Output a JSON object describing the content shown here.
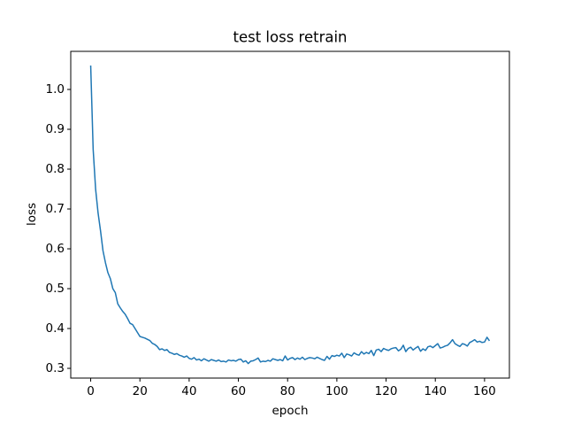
{
  "chart_data": {
    "type": "line",
    "title": "test loss retrain",
    "xlabel": "epoch",
    "ylabel": "loss",
    "x": [
      0,
      1,
      2,
      3,
      4,
      5,
      6,
      7,
      8,
      9,
      10,
      11,
      12,
      13,
      14,
      15,
      16,
      17,
      18,
      19,
      20,
      21,
      22,
      23,
      24,
      25,
      26,
      27,
      28,
      29,
      30,
      31,
      32,
      33,
      34,
      35,
      36,
      37,
      38,
      39,
      40,
      41,
      42,
      43,
      44,
      45,
      46,
      47,
      48,
      49,
      50,
      51,
      52,
      53,
      54,
      55,
      56,
      57,
      58,
      59,
      60,
      61,
      62,
      63,
      64,
      65,
      66,
      67,
      68,
      69,
      70,
      71,
      72,
      73,
      74,
      75,
      76,
      77,
      78,
      79,
      80,
      81,
      82,
      83,
      84,
      85,
      86,
      87,
      88,
      89,
      90,
      91,
      92,
      93,
      94,
      95,
      96,
      97,
      98,
      99,
      100,
      101,
      102,
      103,
      104,
      105,
      106,
      107,
      108,
      109,
      110,
      111,
      112,
      113,
      114,
      115,
      116,
      117,
      118,
      119,
      120,
      121,
      122,
      123,
      124,
      125,
      126,
      127,
      128,
      129,
      130,
      131,
      132,
      133,
      134,
      135,
      136,
      137,
      138,
      139,
      140,
      141,
      142,
      143,
      144,
      145,
      146,
      147,
      148,
      149,
      150,
      151,
      152,
      153,
      154,
      155,
      156,
      157,
      158,
      159,
      160,
      161,
      162
    ],
    "series": [
      {
        "color": "#1f77b4",
        "values": [
          1.06,
          0.85,
          0.75,
          0.69,
          0.645,
          0.595,
          0.565,
          0.54,
          0.525,
          0.5,
          0.49,
          0.462,
          0.452,
          0.443,
          0.436,
          0.425,
          0.413,
          0.41,
          0.4,
          0.39,
          0.38,
          0.378,
          0.376,
          0.373,
          0.37,
          0.363,
          0.36,
          0.355,
          0.347,
          0.349,
          0.345,
          0.347,
          0.34,
          0.338,
          0.335,
          0.337,
          0.333,
          0.331,
          0.328,
          0.331,
          0.325,
          0.323,
          0.327,
          0.321,
          0.323,
          0.319,
          0.324,
          0.321,
          0.318,
          0.322,
          0.32,
          0.318,
          0.321,
          0.317,
          0.318,
          0.316,
          0.321,
          0.319,
          0.32,
          0.318,
          0.322,
          0.323,
          0.316,
          0.319,
          0.312,
          0.318,
          0.319,
          0.322,
          0.326,
          0.316,
          0.318,
          0.317,
          0.32,
          0.318,
          0.324,
          0.322,
          0.32,
          0.322,
          0.319,
          0.331,
          0.321,
          0.325,
          0.327,
          0.322,
          0.326,
          0.323,
          0.328,
          0.322,
          0.325,
          0.327,
          0.326,
          0.324,
          0.328,
          0.325,
          0.322,
          0.32,
          0.33,
          0.323,
          0.332,
          0.33,
          0.333,
          0.331,
          0.338,
          0.327,
          0.336,
          0.334,
          0.331,
          0.339,
          0.335,
          0.333,
          0.342,
          0.336,
          0.34,
          0.337,
          0.345,
          0.332,
          0.346,
          0.348,
          0.342,
          0.35,
          0.347,
          0.345,
          0.349,
          0.351,
          0.352,
          0.344,
          0.348,
          0.358,
          0.342,
          0.35,
          0.353,
          0.346,
          0.351,
          0.355,
          0.343,
          0.349,
          0.345,
          0.354,
          0.356,
          0.352,
          0.357,
          0.362,
          0.351,
          0.353,
          0.356,
          0.358,
          0.364,
          0.372,
          0.362,
          0.358,
          0.355,
          0.362,
          0.36,
          0.356,
          0.365,
          0.368,
          0.372,
          0.366,
          0.368,
          0.365,
          0.366,
          0.378,
          0.369
        ]
      }
    ],
    "xlim": [
      -8.1,
      170.1
    ],
    "xticks": [
      0,
      20,
      40,
      60,
      80,
      100,
      120,
      140,
      160
    ],
    "ylim": [
      0.2756,
      1.0956
    ],
    "yticks": [
      0.3,
      0.4,
      0.5,
      0.6,
      0.7,
      0.8,
      0.9,
      {
        "value": 1,
        "label": "1.0"
      }
    ]
  }
}
